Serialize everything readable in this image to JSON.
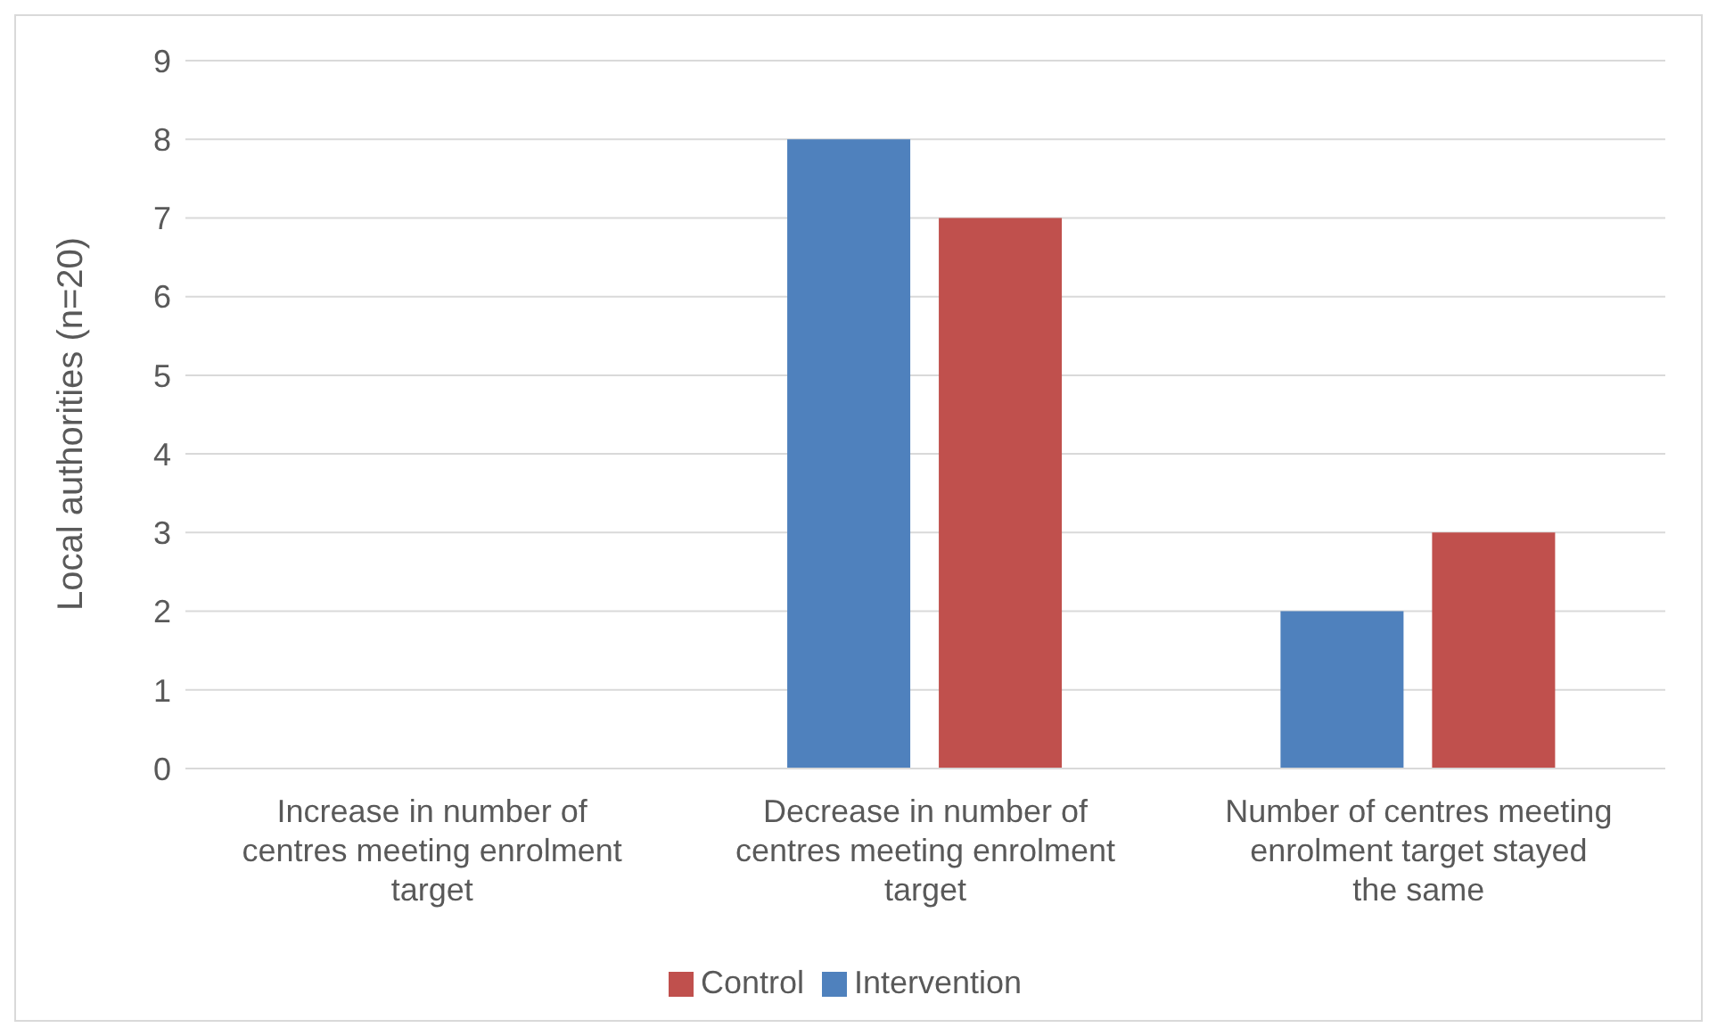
{
  "chart_data": {
    "type": "bar",
    "ylabel": "Local authorities (n=20)",
    "categories": [
      "Increase in number of centres meeting enrolment target",
      "Decrease in number of centres meeting enrolment target",
      "Number of centres meeting enrolment target stayed the same"
    ],
    "series": [
      {
        "name": "Intervention",
        "color": "#4f81bd",
        "values": [
          0,
          8,
          2
        ]
      },
      {
        "name": "Control",
        "color": "#c0504d",
        "values": [
          0,
          7,
          3
        ]
      }
    ],
    "ylim": [
      0,
      9
    ],
    "yticks": [
      0,
      1,
      2,
      3,
      4,
      5,
      6,
      7,
      8,
      9
    ],
    "grid": "y",
    "legend": "bottom"
  }
}
